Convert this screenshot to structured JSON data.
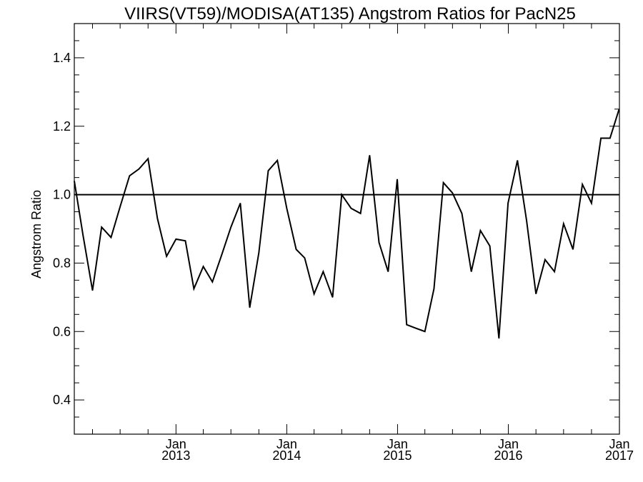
{
  "chart_data": {
    "type": "line",
    "title": "VIIRS(VT59)/MODISA(AT135)  Angstrom Ratios for PacN25",
    "xlabel": "",
    "ylabel": "Angstrom Ratio",
    "ylim": [
      0.3,
      1.5
    ],
    "xlim": [
      "2012-02-01",
      "2017-01-01"
    ],
    "grid": false,
    "reference_line": 1.0,
    "y_ticks": [
      "0.4",
      "0.6",
      "0.8",
      "1.0",
      "1.2",
      "1.4"
    ],
    "x_ticks": [
      {
        "date": "2013-01-01",
        "month": "Jan",
        "year": "2013"
      },
      {
        "date": "2014-01-01",
        "month": "Jan",
        "year": "2014"
      },
      {
        "date": "2015-01-01",
        "month": "Jan",
        "year": "2015"
      },
      {
        "date": "2016-01-01",
        "month": "Jan",
        "year": "2016"
      },
      {
        "date": "2017-01-01",
        "month": "Jan",
        "year": "2017"
      }
    ],
    "series": [
      {
        "color": "#000000",
        "x": [
          "2012-02-01",
          "2012-03-01",
          "2012-04-01",
          "2012-05-01",
          "2012-06-01",
          "2012-07-01",
          "2012-08-01",
          "2012-09-01",
          "2012-10-01",
          "2012-11-01",
          "2012-12-01",
          "2013-01-01",
          "2013-02-01",
          "2013-03-01",
          "2013-04-01",
          "2013-05-01",
          "2013-06-01",
          "2013-07-01",
          "2013-08-01",
          "2013-09-01",
          "2013-10-01",
          "2013-11-01",
          "2013-12-01",
          "2014-01-01",
          "2014-02-01",
          "2014-03-01",
          "2014-04-01",
          "2014-05-01",
          "2014-06-01",
          "2014-07-01",
          "2014-08-01",
          "2014-09-01",
          "2014-10-01",
          "2014-11-01",
          "2014-12-01",
          "2014-12-31",
          "2015-01-31",
          "2015-03-01",
          "2015-04-01",
          "2015-05-01",
          "2015-06-01",
          "2015-07-01",
          "2015-08-01",
          "2015-09-01",
          "2015-10-01",
          "2015-11-01",
          "2015-12-01",
          "2015-12-31",
          "2016-01-31",
          "2016-03-01",
          "2016-04-01",
          "2016-05-01",
          "2016-06-01",
          "2016-07-01",
          "2016-08-01",
          "2016-09-01",
          "2016-10-01",
          "2016-11-01",
          "2016-12-01",
          "2016-12-31"
        ],
        "y": [
          1.04,
          0.88,
          0.72,
          0.905,
          0.875,
          0.965,
          1.055,
          1.075,
          1.105,
          0.93,
          0.82,
          0.87,
          0.865,
          0.725,
          0.79,
          0.745,
          0.825,
          0.905,
          0.975,
          0.67,
          0.83,
          1.07,
          1.1,
          0.96,
          0.84,
          0.815,
          0.71,
          0.775,
          0.7,
          1.0,
          0.96,
          0.945,
          1.115,
          0.86,
          0.775,
          1.045,
          0.62,
          0.61,
          0.6,
          0.725,
          1.035,
          1.005,
          0.945,
          0.775,
          0.895,
          0.85,
          0.58,
          0.975,
          1.1,
          0.925,
          0.71,
          0.81,
          0.775,
          0.915,
          0.84,
          1.03,
          0.975,
          1.165,
          1.165,
          1.25
        ]
      }
    ]
  }
}
